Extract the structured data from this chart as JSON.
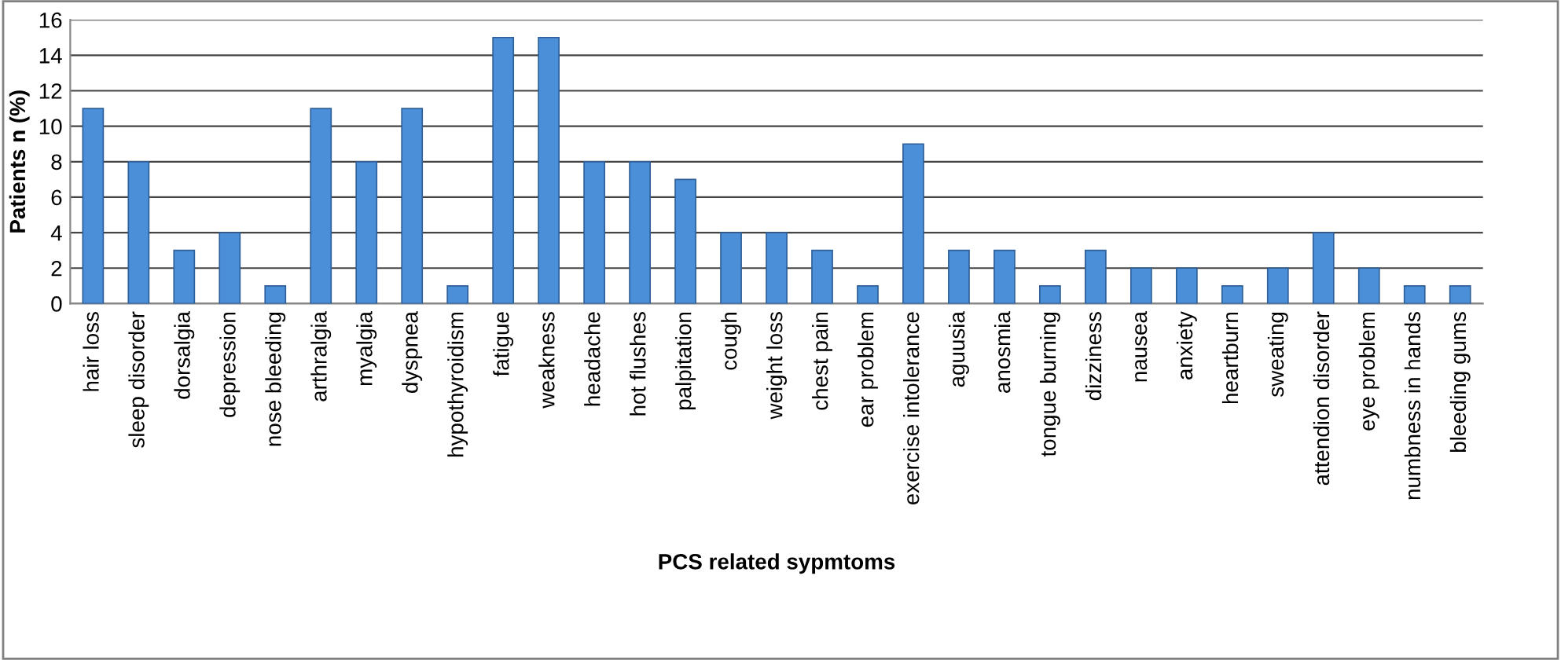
{
  "chart_data": {
    "type": "bar",
    "xlabel": "PCS related sypmtoms",
    "ylabel": "Patients n (%)",
    "categories": [
      "hair loss",
      "sleep disorder",
      "dorsalgia",
      "depression",
      "nose bleeding",
      "arthralgia",
      "myalgia",
      "dyspnea",
      "hypothyroidism",
      "fatigue",
      "weakness",
      "headache",
      "hot flushes",
      "palpitation",
      "cough",
      "weight loss",
      "chest pain",
      "ear problem",
      "exercise intolerance",
      "aguusia",
      "anosmia",
      "tongue burning",
      "dizziness",
      "nausea",
      "anxiety",
      "heartburn",
      "sweating",
      "attendion disorder",
      "eye problem",
      "numbness in hands",
      "bleeding gums"
    ],
    "values": [
      11,
      8,
      3,
      4,
      1,
      11,
      8,
      11,
      1,
      15,
      15,
      8,
      8,
      7,
      4,
      4,
      3,
      1,
      9,
      3,
      3,
      1,
      3,
      2,
      2,
      1,
      2,
      4,
      2,
      1,
      1
    ],
    "color": "#4a8fd8",
    "ylim": [
      0,
      16
    ],
    "yticks": [
      0,
      2,
      4,
      6,
      8,
      10,
      12,
      14,
      16
    ],
    "grid": "y",
    "legend": false
  }
}
